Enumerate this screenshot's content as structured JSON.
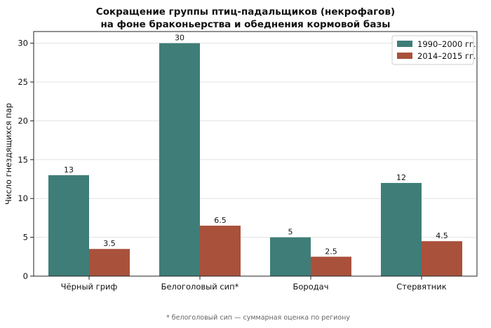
{
  "chart_data": {
    "type": "bar",
    "title_lines": [
      "Сокращение группы птиц-падальщиков (некрофагов)",
      "на фоне браконьерства и обеднения кормовой базы"
    ],
    "xlabel": "",
    "ylabel": "Число гнездящихся пар",
    "categories": [
      "Чёрный гриф",
      "Белоголовый сип*",
      "Бородач",
      "Стервятник"
    ],
    "series": [
      {
        "name": "1990–2000 гг.",
        "values": [
          13,
          30,
          5,
          12
        ],
        "color": "#3f7d78"
      },
      {
        "name": "2014–2015 гг.",
        "values": [
          3.5,
          6.5,
          2.5,
          4.5
        ],
        "color": "#a9513b"
      }
    ],
    "data_labels": [
      [
        "13",
        "30",
        "5",
        "12"
      ],
      [
        "3.5",
        "6.5",
        "2.5",
        "4.5"
      ]
    ],
    "ylim": [
      0,
      31.5
    ],
    "yticks": [
      0,
      5,
      10,
      15,
      20,
      25,
      30
    ],
    "grid": "horizontal",
    "legend_position": "top-right",
    "footnote": "* белоголовый сип — суммарная оценка по региону"
  }
}
